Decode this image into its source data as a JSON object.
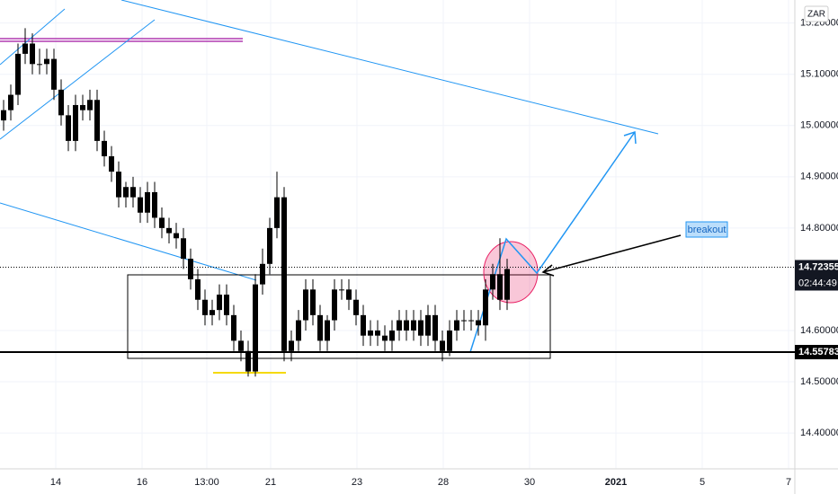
{
  "chart_data": {
    "type": "candlestick",
    "currency": "ZAR",
    "color": "#000000",
    "ylim": [
      14.33,
      15.245
    ],
    "yticks": [
      {
        "value": 14.4,
        "label": "14.40000"
      },
      {
        "value": 14.5,
        "label": "14.50000"
      },
      {
        "value": 14.6,
        "label": "14.60000"
      },
      {
        "value": 14.8,
        "label": "14.80000"
      },
      {
        "value": 14.9,
        "label": "14.90000"
      },
      {
        "value": 15.0,
        "label": "15.00000"
      },
      {
        "value": 15.1,
        "label": "15.10000"
      },
      {
        "value": 15.2,
        "label": "15.20000"
      }
    ],
    "xlim": [
      -0.5,
      110
    ],
    "xticks": [
      {
        "value": 7.25,
        "label": "14"
      },
      {
        "value": 19.25,
        "label": "16"
      },
      {
        "value": 28.25,
        "label": "13:00"
      },
      {
        "value": 37.125,
        "label": "21"
      },
      {
        "value": 49.125,
        "label": "23"
      },
      {
        "value": 61.125,
        "label": "28"
      },
      {
        "value": 73.125,
        "label": "30"
      },
      {
        "value": 85.125,
        "label": "2021"
      },
      {
        "value": 97.125,
        "label": "5"
      },
      {
        "value": 109.125,
        "label": "7"
      }
    ],
    "open": [
      15.01,
      15.03,
      15.06,
      15.14,
      15.16,
      15.12,
      15.12,
      15.13,
      15.07,
      15.02,
      14.97,
      15.04,
      15.03,
      15.05,
      14.97,
      14.94,
      14.91,
      14.86,
      14.88,
      14.86,
      14.83,
      14.87,
      14.82,
      14.8,
      14.79,
      14.78,
      14.74,
      14.7,
      14.66,
      14.63,
      14.64,
      14.67,
      14.63,
      14.58,
      14.56,
      14.52,
      14.69,
      14.73,
      14.8,
      14.86,
      14.56,
      14.58,
      14.62,
      14.68,
      14.63,
      14.58,
      14.62,
      14.68,
      14.68,
      14.66,
      14.63,
      14.59,
      14.6,
      14.59,
      14.58,
      14.6,
      14.62,
      14.6,
      14.62,
      14.59,
      14.63,
      14.58,
      14.56,
      14.6,
      14.62,
      14.62,
      14.62,
      14.61,
      14.68,
      14.71,
      14.66
    ],
    "high": [
      15.05,
      15.08,
      15.16,
      15.19,
      15.18,
      15.15,
      15.15,
      15.15,
      15.09,
      15.04,
      15.06,
      15.06,
      15.07,
      15.07,
      14.99,
      14.96,
      14.93,
      14.89,
      14.9,
      14.88,
      14.89,
      14.89,
      14.84,
      14.82,
      14.81,
      14.8,
      14.76,
      14.72,
      14.68,
      14.66,
      14.69,
      14.69,
      14.65,
      14.6,
      14.58,
      14.71,
      14.76,
      14.82,
      14.91,
      14.88,
      14.6,
      14.64,
      14.7,
      14.7,
      14.65,
      14.63,
      14.7,
      14.7,
      14.7,
      14.68,
      14.65,
      14.62,
      14.62,
      14.61,
      14.62,
      14.64,
      14.64,
      14.64,
      14.64,
      14.65,
      14.65,
      14.6,
      14.62,
      14.64,
      14.64,
      14.64,
      14.64,
      14.7,
      14.73,
      14.78,
      14.74
    ],
    "low": [
      14.99,
      15.01,
      15.04,
      15.12,
      15.1,
      15.1,
      15.1,
      15.05,
      15.0,
      14.95,
      14.95,
      15.01,
      15.01,
      14.95,
      14.92,
      14.89,
      14.84,
      14.84,
      14.84,
      14.81,
      14.81,
      14.8,
      14.78,
      14.77,
      14.76,
      14.72,
      14.68,
      14.64,
      14.61,
      14.61,
      14.62,
      14.61,
      14.56,
      14.54,
      14.51,
      14.51,
      14.67,
      14.71,
      14.78,
      14.54,
      14.54,
      14.56,
      14.6,
      14.61,
      14.56,
      14.56,
      14.6,
      14.66,
      14.64,
      14.61,
      14.57,
      14.57,
      14.57,
      14.56,
      14.56,
      14.58,
      14.58,
      14.58,
      14.57,
      14.57,
      14.56,
      14.54,
      14.55,
      14.58,
      14.6,
      14.6,
      14.59,
      14.58,
      14.66,
      14.64,
      14.64
    ],
    "close": [
      15.03,
      15.06,
      15.14,
      15.16,
      15.12,
      15.12,
      15.13,
      15.07,
      15.02,
      14.97,
      15.04,
      15.03,
      15.05,
      14.97,
      14.94,
      14.91,
      14.86,
      14.88,
      14.86,
      14.83,
      14.87,
      14.82,
      14.8,
      14.79,
      14.78,
      14.74,
      14.7,
      14.66,
      14.63,
      14.64,
      14.67,
      14.63,
      14.58,
      14.56,
      14.52,
      14.69,
      14.73,
      14.8,
      14.86,
      14.56,
      14.58,
      14.62,
      14.68,
      14.63,
      14.58,
      14.62,
      14.68,
      14.68,
      14.66,
      14.63,
      14.59,
      14.6,
      14.59,
      14.58,
      14.6,
      14.62,
      14.6,
      14.62,
      14.59,
      14.63,
      14.58,
      14.56,
      14.6,
      14.62,
      14.62,
      14.62,
      14.61,
      14.68,
      14.71,
      14.66,
      14.72
    ],
    "last_price": {
      "value": 14.72355,
      "label": "14.72355"
    },
    "countdown": "02:44:49",
    "level": {
      "value": 14.55783,
      "label": "14.55783"
    },
    "annotation": "breakout"
  }
}
